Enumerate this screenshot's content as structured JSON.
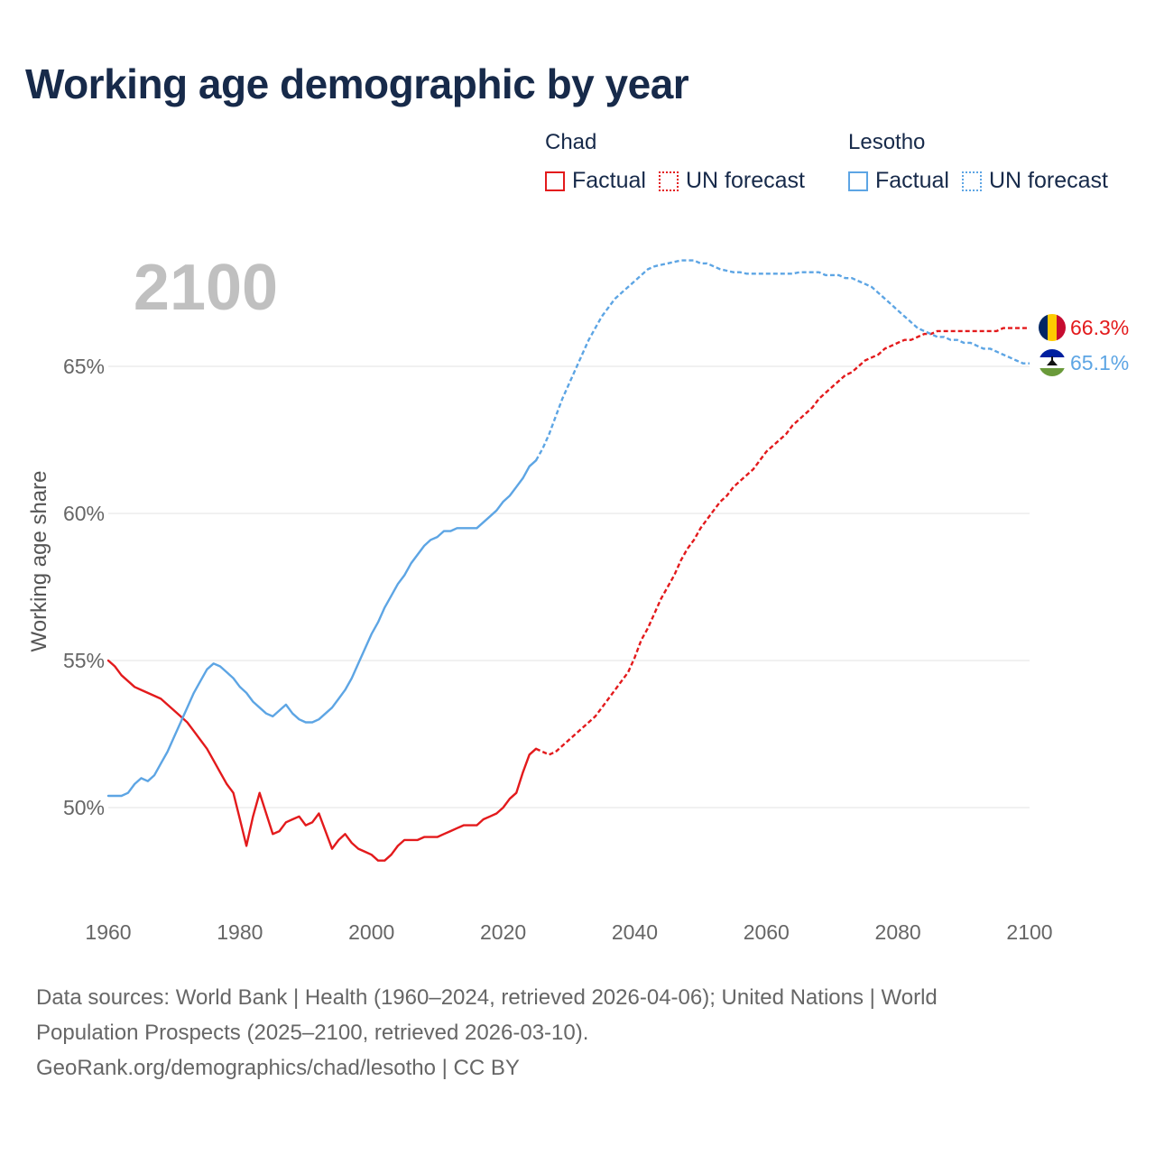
{
  "title": "Working age demographic by year",
  "year_label": "2100",
  "legend": {
    "groups": [
      {
        "name": "Chad",
        "color": "#e31a1c",
        "items": [
          {
            "label": "Factual",
            "style": "solid"
          },
          {
            "label": "UN forecast",
            "style": "dotted"
          }
        ]
      },
      {
        "name": "Lesotho",
        "color": "#5da5e4",
        "items": [
          {
            "label": "Factual",
            "style": "solid"
          },
          {
            "label": "UN forecast",
            "style": "dotted"
          }
        ]
      }
    ]
  },
  "footer": {
    "line1": "Data sources: World Bank | Health (1960–2024, retrieved 2026-04-06); United Nations | World",
    "line2": "Population Prospects (2025–2100, retrieved 2026-03-10).",
    "line3": "GeoRank.org/demographics/chad/lesotho | CC BY"
  },
  "chart_data": {
    "type": "line",
    "title": "Working age demographic by year",
    "xlabel": "",
    "ylabel": "Working age share",
    "xlim": [
      1960,
      2100
    ],
    "ylim": [
      46.5,
      69.5
    ],
    "xticks": [
      1960,
      1980,
      2000,
      2020,
      2040,
      2060,
      2080,
      2100
    ],
    "yticks": [
      50,
      55,
      60,
      65
    ],
    "ytick_labels": [
      "50%",
      "55%",
      "60%",
      "65%"
    ],
    "grid": true,
    "series": [
      {
        "name": "Chad",
        "color": "#e31a1c",
        "end_label": "66.3%",
        "end_value": 66.3,
        "factual": {
          "x": [
            1960,
            1961,
            1962,
            1963,
            1964,
            1965,
            1966,
            1967,
            1968,
            1969,
            1970,
            1971,
            1972,
            1973,
            1974,
            1975,
            1976,
            1977,
            1978,
            1979,
            1980,
            1981,
            1982,
            1983,
            1984,
            1985,
            1986,
            1987,
            1988,
            1989,
            1990,
            1991,
            1992,
            1993,
            1994,
            1995,
            1996,
            1997,
            1998,
            1999,
            2000,
            2001,
            2002,
            2003,
            2004,
            2005,
            2006,
            2007,
            2008,
            2009,
            2010,
            2011,
            2012,
            2013,
            2014,
            2015,
            2016,
            2017,
            2018,
            2019,
            2020,
            2021,
            2022,
            2023,
            2024,
            2025
          ],
          "y": [
            55.0,
            54.8,
            54.5,
            54.3,
            54.1,
            54.0,
            53.9,
            53.8,
            53.7,
            53.5,
            53.3,
            53.1,
            52.9,
            52.6,
            52.3,
            52.0,
            51.6,
            51.2,
            50.8,
            50.5,
            49.6,
            48.7,
            49.7,
            50.5,
            49.8,
            49.1,
            49.2,
            49.5,
            49.6,
            49.7,
            49.4,
            49.5,
            49.8,
            49.2,
            48.6,
            48.9,
            49.1,
            48.8,
            48.6,
            48.5,
            48.4,
            48.2,
            48.2,
            48.4,
            48.7,
            48.9,
            48.9,
            48.9,
            49.0,
            49.0,
            49.0,
            49.1,
            49.2,
            49.3,
            49.4,
            49.4,
            49.4,
            49.6,
            49.7,
            49.8,
            50.0,
            50.3,
            50.5,
            51.2,
            51.8,
            52.0
          ]
        },
        "forecast": {
          "x": [
            2025,
            2026,
            2027,
            2028,
            2029,
            2030,
            2031,
            2032,
            2033,
            2034,
            2035,
            2036,
            2037,
            2038,
            2039,
            2040,
            2041,
            2042,
            2043,
            2044,
            2045,
            2046,
            2047,
            2048,
            2049,
            2050,
            2051,
            2052,
            2053,
            2054,
            2055,
            2056,
            2057,
            2058,
            2059,
            2060,
            2061,
            2062,
            2063,
            2064,
            2065,
            2066,
            2067,
            2068,
            2069,
            2070,
            2071,
            2072,
            2073,
            2074,
            2075,
            2076,
            2077,
            2078,
            2079,
            2080,
            2081,
            2082,
            2083,
            2084,
            2085,
            2086,
            2087,
            2088,
            2089,
            2090,
            2091,
            2092,
            2093,
            2094,
            2095,
            2096,
            2097,
            2098,
            2099,
            2100
          ],
          "y": [
            52.0,
            51.9,
            51.8,
            51.9,
            52.1,
            52.3,
            52.5,
            52.7,
            52.9,
            53.1,
            53.4,
            53.7,
            54.0,
            54.3,
            54.6,
            55.1,
            55.7,
            56.1,
            56.6,
            57.1,
            57.5,
            57.9,
            58.4,
            58.8,
            59.1,
            59.5,
            59.8,
            60.1,
            60.4,
            60.6,
            60.9,
            61.1,
            61.3,
            61.5,
            61.8,
            62.1,
            62.3,
            62.5,
            62.7,
            63.0,
            63.2,
            63.4,
            63.6,
            63.9,
            64.1,
            64.3,
            64.5,
            64.7,
            64.8,
            65.0,
            65.2,
            65.3,
            65.4,
            65.6,
            65.7,
            65.8,
            65.9,
            65.9,
            66.0,
            66.1,
            66.1,
            66.2,
            66.2,
            66.2,
            66.2,
            66.2,
            66.2,
            66.2,
            66.2,
            66.2,
            66.2,
            66.3,
            66.3,
            66.3,
            66.3,
            66.3
          ]
        }
      },
      {
        "name": "Lesotho",
        "color": "#5da5e4",
        "end_label": "65.1%",
        "end_value": 65.1,
        "factual": {
          "x": [
            1960,
            1961,
            1962,
            1963,
            1964,
            1965,
            1966,
            1967,
            1968,
            1969,
            1970,
            1971,
            1972,
            1973,
            1974,
            1975,
            1976,
            1977,
            1978,
            1979,
            1980,
            1981,
            1982,
            1983,
            1984,
            1985,
            1986,
            1987,
            1988,
            1989,
            1990,
            1991,
            1992,
            1993,
            1994,
            1995,
            1996,
            1997,
            1998,
            1999,
            2000,
            2001,
            2002,
            2003,
            2004,
            2005,
            2006,
            2007,
            2008,
            2009,
            2010,
            2011,
            2012,
            2013,
            2014,
            2015,
            2016,
            2017,
            2018,
            2019,
            2020,
            2021,
            2022,
            2023,
            2024,
            2025
          ],
          "y": [
            50.4,
            50.4,
            50.4,
            50.5,
            50.8,
            51.0,
            50.9,
            51.1,
            51.5,
            51.9,
            52.4,
            52.9,
            53.4,
            53.9,
            54.3,
            54.7,
            54.9,
            54.8,
            54.6,
            54.4,
            54.1,
            53.9,
            53.6,
            53.4,
            53.2,
            53.1,
            53.3,
            53.5,
            53.2,
            53.0,
            52.9,
            52.9,
            53.0,
            53.2,
            53.4,
            53.7,
            54.0,
            54.4,
            54.9,
            55.4,
            55.9,
            56.3,
            56.8,
            57.2,
            57.6,
            57.9,
            58.3,
            58.6,
            58.9,
            59.1,
            59.2,
            59.4,
            59.4,
            59.5,
            59.5,
            59.5,
            59.5,
            59.7,
            59.9,
            60.1,
            60.4,
            60.6,
            60.9,
            61.2,
            61.6,
            61.8
          ]
        },
        "forecast": {
          "x": [
            2025,
            2026,
            2027,
            2028,
            2029,
            2030,
            2031,
            2032,
            2033,
            2034,
            2035,
            2036,
            2037,
            2038,
            2039,
            2040,
            2041,
            2042,
            2043,
            2044,
            2045,
            2046,
            2047,
            2048,
            2049,
            2050,
            2051,
            2052,
            2053,
            2054,
            2055,
            2056,
            2057,
            2058,
            2059,
            2060,
            2061,
            2062,
            2063,
            2064,
            2065,
            2066,
            2067,
            2068,
            2069,
            2070,
            2071,
            2072,
            2073,
            2074,
            2075,
            2076,
            2077,
            2078,
            2079,
            2080,
            2081,
            2082,
            2083,
            2084,
            2085,
            2086,
            2087,
            2088,
            2089,
            2090,
            2091,
            2092,
            2093,
            2094,
            2095,
            2096,
            2097,
            2098,
            2099,
            2100
          ],
          "y": [
            61.8,
            62.2,
            62.7,
            63.3,
            63.9,
            64.4,
            64.9,
            65.4,
            65.9,
            66.3,
            66.7,
            67.0,
            67.3,
            67.5,
            67.7,
            67.9,
            68.1,
            68.3,
            68.4,
            68.45,
            68.5,
            68.55,
            68.6,
            68.6,
            68.6,
            68.5,
            68.5,
            68.4,
            68.3,
            68.25,
            68.2,
            68.2,
            68.15,
            68.15,
            68.15,
            68.15,
            68.15,
            68.15,
            68.15,
            68.15,
            68.2,
            68.2,
            68.2,
            68.2,
            68.1,
            68.1,
            68.1,
            68.0,
            68.0,
            67.9,
            67.8,
            67.7,
            67.5,
            67.3,
            67.1,
            66.9,
            66.7,
            66.5,
            66.3,
            66.2,
            66.1,
            66.0,
            66.0,
            65.9,
            65.9,
            65.8,
            65.8,
            65.7,
            65.6,
            65.6,
            65.5,
            65.4,
            65.3,
            65.2,
            65.1,
            65.1
          ]
        }
      }
    ]
  }
}
